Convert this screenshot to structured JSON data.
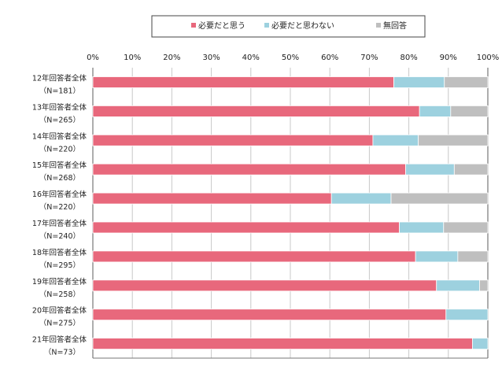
{
  "chart_data": {
    "type": "bar",
    "orientation": "horizontal",
    "stacked": true,
    "categories": [
      {
        "line1": "12年回答者全体",
        "line2": "（N=181）"
      },
      {
        "line1": "13年回答者全体",
        "line2": "（N=265）"
      },
      {
        "line1": "14年回答者全体",
        "line2": "（N=220）"
      },
      {
        "line1": "15年回答者全体",
        "line2": "（N=268）"
      },
      {
        "line1": "16年回答者全体",
        "line2": "（N=220）"
      },
      {
        "line1": "17年回答者全体",
        "line2": "（N=240）"
      },
      {
        "line1": "18年回答者全体",
        "line2": "（N=295）"
      },
      {
        "line1": "19年回答者全体",
        "line2": "（N=258）"
      },
      {
        "line1": "20年回答者全体",
        "line2": "（N=275）"
      },
      {
        "line1": "21年回答者全体",
        "line2": "（N=73）"
      }
    ],
    "series": [
      {
        "name": "必要だと思う",
        "color": "#e8687c",
        "values": [
          76.2,
          82.7,
          70.9,
          79.2,
          60.4,
          77.6,
          81.7,
          87.0,
          89.4,
          96.1
        ]
      },
      {
        "name": "必要だと思わない",
        "color": "#9dd1df",
        "values": [
          12.8,
          7.9,
          11.5,
          12.3,
          15.1,
          11.2,
          10.7,
          10.9,
          10.6,
          3.9
        ]
      },
      {
        "name": "無回答",
        "color": "#bfbfbf",
        "values": [
          11.0,
          9.4,
          17.6,
          8.5,
          24.5,
          11.2,
          7.6,
          2.1,
          0,
          0
        ]
      }
    ],
    "xlim": [
      0,
      100
    ],
    "xticks": [
      "0%",
      "10%",
      "20%",
      "30%",
      "40%",
      "50%",
      "60%",
      "70%",
      "80%",
      "90%",
      "100%"
    ],
    "grid": true,
    "legend_position": "top-center",
    "title": "",
    "xlabel": "",
    "ylabel": ""
  }
}
